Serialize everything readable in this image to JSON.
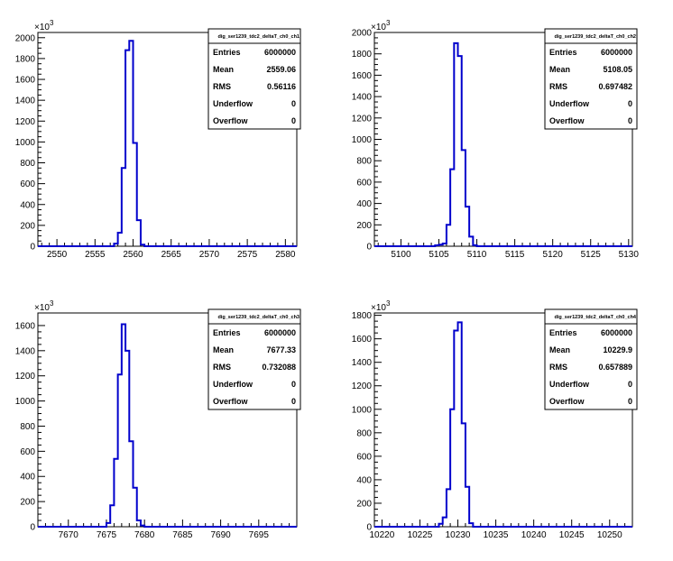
{
  "chart_data": [
    {
      "type": "histogram",
      "stats_title": "dig_ser1239_tdc2_deltaT_ch0_ch1",
      "stats": [
        {
          "label": "Entries",
          "value": "6000000"
        },
        {
          "label": "Mean",
          "value": "2559.06"
        },
        {
          "label": "RMS",
          "value": "0.56116"
        },
        {
          "label": "Underflow",
          "value": "0"
        },
        {
          "label": "Overflow",
          "value": "0"
        }
      ],
      "xlim": [
        2547.5,
        2581.5
      ],
      "ylim": [
        0,
        2050
      ],
      "y_multiplier": "10",
      "y_exponent": "3",
      "xticks": [
        2550,
        2555,
        2560,
        2565,
        2570,
        2575,
        2580
      ],
      "yticks": [
        0,
        200,
        400,
        600,
        800,
        1000,
        1200,
        1400,
        1600,
        1800,
        2000
      ],
      "bin_width": 0.5,
      "bins": [
        {
          "x": 2557.5,
          "y": 25
        },
        {
          "x": 2558.0,
          "y": 130
        },
        {
          "x": 2558.5,
          "y": 750
        },
        {
          "x": 2559.0,
          "y": 1880
        },
        {
          "x": 2559.5,
          "y": 1970
        },
        {
          "x": 2560.0,
          "y": 990
        },
        {
          "x": 2560.5,
          "y": 250
        },
        {
          "x": 2561.0,
          "y": 15
        }
      ]
    },
    {
      "type": "histogram",
      "stats_title": "dig_ser1239_tdc2_deltaT_ch0_ch2",
      "stats": [
        {
          "label": "Entries",
          "value": "6000000"
        },
        {
          "label": "Mean",
          "value": "5108.05"
        },
        {
          "label": "RMS",
          "value": "0.697482"
        },
        {
          "label": "Underflow",
          "value": "0"
        },
        {
          "label": "Overflow",
          "value": "0"
        }
      ],
      "xlim": [
        5096.5,
        5130.5
      ],
      "ylim": [
        0,
        2000
      ],
      "y_multiplier": "10",
      "y_exponent": "3",
      "xticks": [
        5100,
        5105,
        5110,
        5115,
        5120,
        5125,
        5130
      ],
      "yticks": [
        0,
        200,
        400,
        600,
        800,
        1000,
        1200,
        1400,
        1600,
        1800,
        2000
      ],
      "bin_width": 0.5,
      "bins": [
        {
          "x": 5104.5,
          "y": 8
        },
        {
          "x": 5105.0,
          "y": 15
        },
        {
          "x": 5105.5,
          "y": 25
        },
        {
          "x": 5106.0,
          "y": 200
        },
        {
          "x": 5106.5,
          "y": 720
        },
        {
          "x": 5107.0,
          "y": 1900
        },
        {
          "x": 5107.5,
          "y": 1780
        },
        {
          "x": 5108.0,
          "y": 900
        },
        {
          "x": 5108.5,
          "y": 370
        },
        {
          "x": 5109.0,
          "y": 90
        },
        {
          "x": 5109.5,
          "y": 10
        }
      ]
    },
    {
      "type": "histogram",
      "stats_title": "dig_ser1239_tdc2_deltaT_ch0_ch3",
      "stats": [
        {
          "label": "Entries",
          "value": "6000000"
        },
        {
          "label": "Mean",
          "value": "7677.33"
        },
        {
          "label": "RMS",
          "value": "0.732088"
        },
        {
          "label": "Underflow",
          "value": "0"
        },
        {
          "label": "Overflow",
          "value": "0"
        }
      ],
      "xlim": [
        7666,
        7700
      ],
      "ylim": [
        0,
        1700
      ],
      "y_multiplier": "10",
      "y_exponent": "3",
      "xticks": [
        7670,
        7675,
        7680,
        7685,
        7690,
        7695
      ],
      "yticks": [
        0,
        200,
        400,
        600,
        800,
        1000,
        1200,
        1400,
        1600
      ],
      "bin_width": 0.5,
      "bins": [
        {
          "x": 7675.0,
          "y": 30
        },
        {
          "x": 7675.5,
          "y": 170
        },
        {
          "x": 7676.0,
          "y": 540
        },
        {
          "x": 7676.5,
          "y": 1210
        },
        {
          "x": 7677.0,
          "y": 1610
        },
        {
          "x": 7677.5,
          "y": 1400
        },
        {
          "x": 7678.0,
          "y": 680
        },
        {
          "x": 7678.5,
          "y": 310
        },
        {
          "x": 7679.0,
          "y": 50
        },
        {
          "x": 7679.5,
          "y": 10
        }
      ]
    },
    {
      "type": "histogram",
      "stats_title": "dig_ser1239_tdc2_deltaT_ch0_ch4",
      "stats": [
        {
          "label": "Entries",
          "value": "6000000"
        },
        {
          "label": "Mean",
          "value": "10229.9"
        },
        {
          "label": "RMS",
          "value": "0.657889"
        },
        {
          "label": "Underflow",
          "value": "0"
        },
        {
          "label": "Overflow",
          "value": "0"
        }
      ],
      "xlim": [
        10219,
        10253
      ],
      "ylim": [
        0,
        1820
      ],
      "y_multiplier": "10",
      "y_exponent": "3",
      "xticks": [
        10220,
        10225,
        10230,
        10235,
        10240,
        10245,
        10250
      ],
      "yticks": [
        0,
        200,
        400,
        600,
        800,
        1000,
        1200,
        1400,
        1600,
        1800
      ],
      "bin_width": 0.5,
      "bins": [
        {
          "x": 10227.5,
          "y": 25
        },
        {
          "x": 10228.0,
          "y": 80
        },
        {
          "x": 10228.5,
          "y": 320
        },
        {
          "x": 10229.0,
          "y": 1000
        },
        {
          "x": 10229.5,
          "y": 1670
        },
        {
          "x": 10230.0,
          "y": 1740
        },
        {
          "x": 10230.5,
          "y": 880
        },
        {
          "x": 10231.0,
          "y": 340
        },
        {
          "x": 10231.5,
          "y": 30
        }
      ]
    }
  ]
}
